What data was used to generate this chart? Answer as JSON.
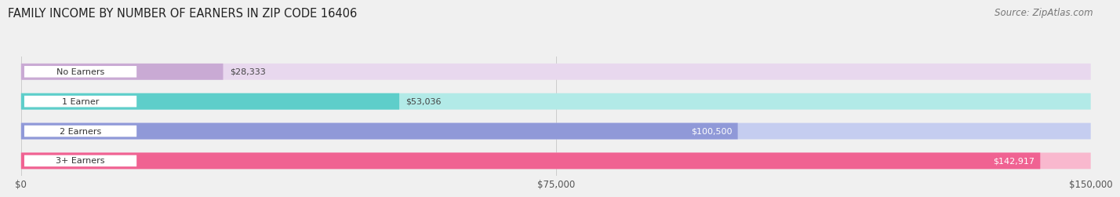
{
  "title": "FAMILY INCOME BY NUMBER OF EARNERS IN ZIP CODE 16406",
  "source": "Source: ZipAtlas.com",
  "categories": [
    "No Earners",
    "1 Earner",
    "2 Earners",
    "3+ Earners"
  ],
  "values": [
    28333,
    53036,
    100500,
    142917
  ],
  "bar_colors": [
    "#c9aad4",
    "#5ececa",
    "#9099d8",
    "#f06292"
  ],
  "bar_bg_colors": [
    "#e8d8ee",
    "#b2eae7",
    "#c5cdf0",
    "#f9b8ce"
  ],
  "value_labels": [
    "$28,333",
    "$53,036",
    "$100,500",
    "$142,917"
  ],
  "xmax": 150000,
  "xticklabels": [
    "$0",
    "$75,000",
    "$150,000"
  ],
  "background_color": "#f0f0f0",
  "title_fontsize": 10.5,
  "source_fontsize": 8.5,
  "bar_label_inside_threshold": 0.55
}
